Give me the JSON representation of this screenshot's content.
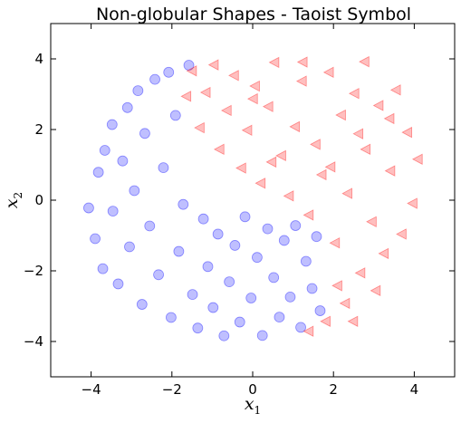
{
  "chart_data": {
    "type": "scatter",
    "title": "Non-globular Shapes - Taoist Symbol",
    "xlabel": "x",
    "xlabel_sub": "1",
    "ylabel": "x",
    "ylabel_sub": "2",
    "xlim": [
      -5,
      5
    ],
    "ylim": [
      -5,
      5
    ],
    "xticks": [
      -4,
      -2,
      0,
      2,
      4
    ],
    "yticks": [
      -4,
      -2,
      0,
      2,
      4
    ],
    "xtick_labels": [
      "−4",
      "−2",
      "0",
      "2",
      "4"
    ],
    "ytick_labels": [
      "−4",
      "−2",
      "0",
      "2",
      "4"
    ],
    "grid": false,
    "series": [
      {
        "marker": "circle",
        "color": "#0000ff",
        "alpha": 0.25,
        "points": [
          [
            -4.06,
            -0.22
          ],
          [
            -3.9,
            -1.09
          ],
          [
            -3.82,
            0.79
          ],
          [
            -3.66,
            1.41
          ],
          [
            -3.71,
            -1.94
          ],
          [
            -3.48,
            2.14
          ],
          [
            -3.46,
            -0.31
          ],
          [
            -3.33,
            -2.37
          ],
          [
            -3.22,
            1.11
          ],
          [
            -3.1,
            2.62
          ],
          [
            -3.05,
            -1.32
          ],
          [
            -2.93,
            0.27
          ],
          [
            -2.84,
            3.1
          ],
          [
            -2.74,
            -2.95
          ],
          [
            -2.67,
            1.89
          ],
          [
            -2.55,
            -0.73
          ],
          [
            -2.42,
            3.42
          ],
          [
            -2.33,
            -2.11
          ],
          [
            -2.21,
            0.92
          ],
          [
            -2.08,
            3.62
          ],
          [
            -2.02,
            -3.32
          ],
          [
            -1.91,
            2.4
          ],
          [
            -1.83,
            -1.45
          ],
          [
            -1.72,
            -0.12
          ],
          [
            -1.58,
            3.82
          ],
          [
            -1.49,
            -2.67
          ],
          [
            -1.36,
            -3.62
          ],
          [
            -1.22,
            -0.53
          ],
          [
            -1.11,
            -1.88
          ],
          [
            -0.98,
            -3.04
          ],
          [
            -0.86,
            -0.96
          ],
          [
            -0.71,
            -3.84
          ],
          [
            -0.58,
            -2.31
          ],
          [
            -0.44,
            -1.28
          ],
          [
            -0.32,
            -3.45
          ],
          [
            -0.19,
            -0.47
          ],
          [
            -0.04,
            -2.77
          ],
          [
            0.11,
            -1.62
          ],
          [
            0.24,
            -3.83
          ],
          [
            0.37,
            -0.81
          ],
          [
            0.52,
            -2.19
          ],
          [
            0.66,
            -3.31
          ],
          [
            0.78,
            -1.14
          ],
          [
            0.93,
            -2.74
          ],
          [
            1.06,
            -0.72
          ],
          [
            1.19,
            -3.6
          ],
          [
            1.32,
            -1.73
          ],
          [
            1.47,
            -2.5
          ],
          [
            1.58,
            -1.03
          ],
          [
            1.67,
            -3.13
          ]
        ]
      },
      {
        "marker": "triangle-left",
        "color": "#ff0000",
        "alpha": 0.25,
        "points": [
          [
            -1.62,
            2.94
          ],
          [
            -1.48,
            3.66
          ],
          [
            -1.29,
            2.05
          ],
          [
            -1.14,
            3.05
          ],
          [
            -0.94,
            3.83
          ],
          [
            -0.8,
            1.44
          ],
          [
            -0.62,
            2.54
          ],
          [
            -0.44,
            3.53
          ],
          [
            -0.26,
            0.91
          ],
          [
            -0.11,
            1.98
          ],
          [
            0.08,
            3.23
          ],
          [
            0.22,
            0.48
          ],
          [
            0.41,
            2.65
          ],
          [
            0.56,
            3.9
          ],
          [
            0.73,
            1.26
          ],
          [
            0.92,
            0.12
          ],
          [
            1.07,
            2.08
          ],
          [
            1.24,
            3.37
          ],
          [
            1.41,
            -0.42
          ],
          [
            1.58,
            1.58
          ],
          [
            1.73,
            0.72
          ],
          [
            1.91,
            3.62
          ],
          [
            2.06,
            -1.21
          ],
          [
            2.21,
            2.41
          ],
          [
            2.37,
            0.19
          ],
          [
            2.54,
            3.02
          ],
          [
            2.69,
            -2.06
          ],
          [
            2.82,
            1.44
          ],
          [
            2.97,
            -0.61
          ],
          [
            3.14,
            2.68
          ],
          [
            3.27,
            -1.51
          ],
          [
            3.43,
            0.83
          ],
          [
            3.57,
            3.12
          ],
          [
            3.71,
            -0.96
          ],
          [
            3.85,
            1.92
          ],
          [
            3.98,
            -0.09
          ],
          [
            4.11,
            1.16
          ],
          [
            2.31,
            -2.92
          ],
          [
            2.51,
            -3.43
          ],
          [
            1.83,
            -3.43
          ],
          [
            1.41,
            -3.71
          ],
          [
            2.12,
            -2.42
          ],
          [
            3.07,
            -2.56
          ],
          [
            2.79,
            3.92
          ],
          [
            1.26,
            3.91
          ],
          [
            0.49,
            1.08
          ],
          [
            0.03,
            2.87
          ],
          [
            2.64,
            1.88
          ],
          [
            3.41,
            2.31
          ],
          [
            1.95,
            0.94
          ]
        ]
      }
    ]
  },
  "colors": {
    "circle_series": "#0000ff",
    "triangle_series": "#ff0000"
  }
}
